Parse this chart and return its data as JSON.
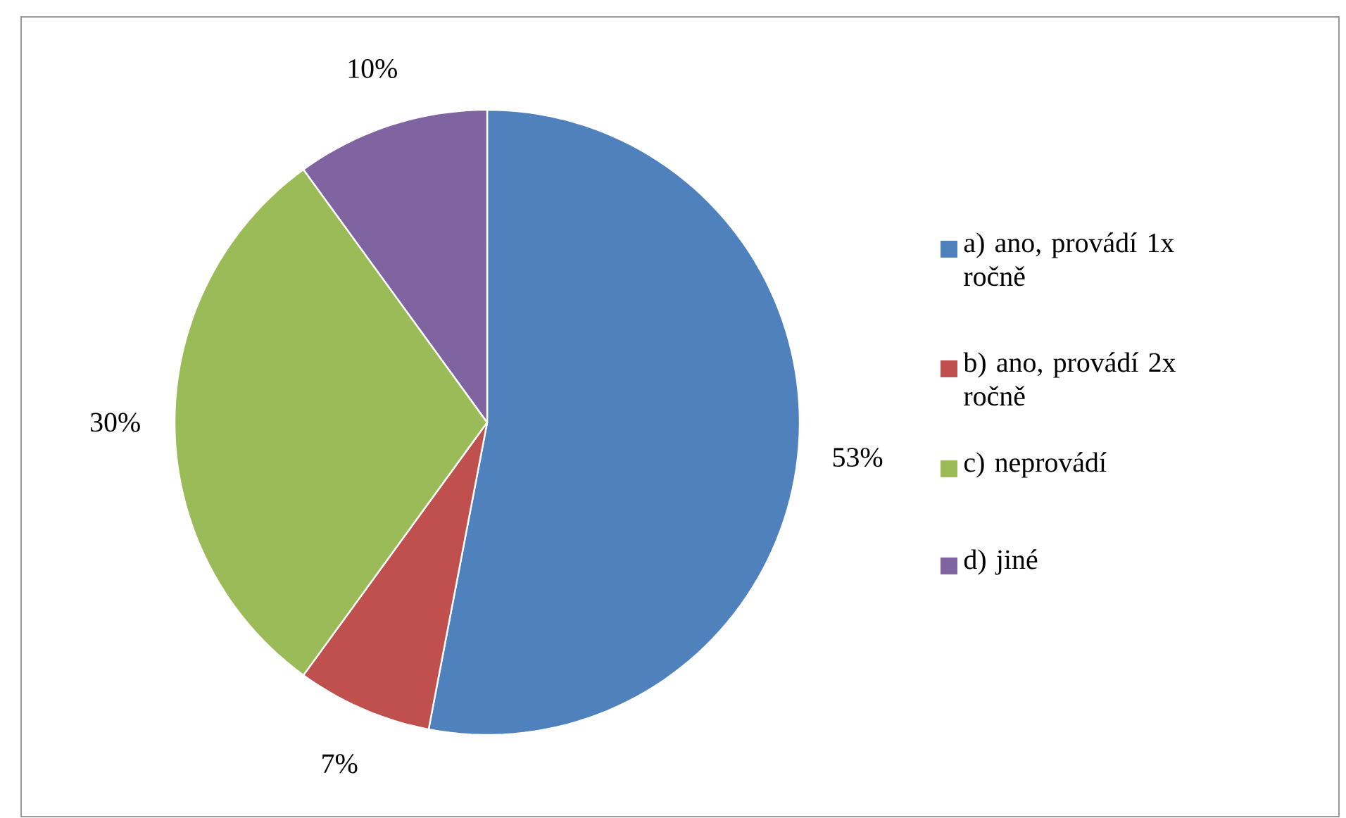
{
  "chart_data": {
    "type": "pie",
    "categories": [
      "a) ano, provádí 1x ročně",
      "b) ano, provádí 2x ročně",
      "c) neprovádí",
      "d) jiné"
    ],
    "values": [
      53,
      7,
      30,
      10
    ],
    "colors": [
      "#4f81bd",
      "#c0504d",
      "#9bbb59",
      "#8064a2"
    ],
    "value_labels": [
      "53%",
      "7%",
      "30%",
      "10%"
    ],
    "legend": "right"
  }
}
